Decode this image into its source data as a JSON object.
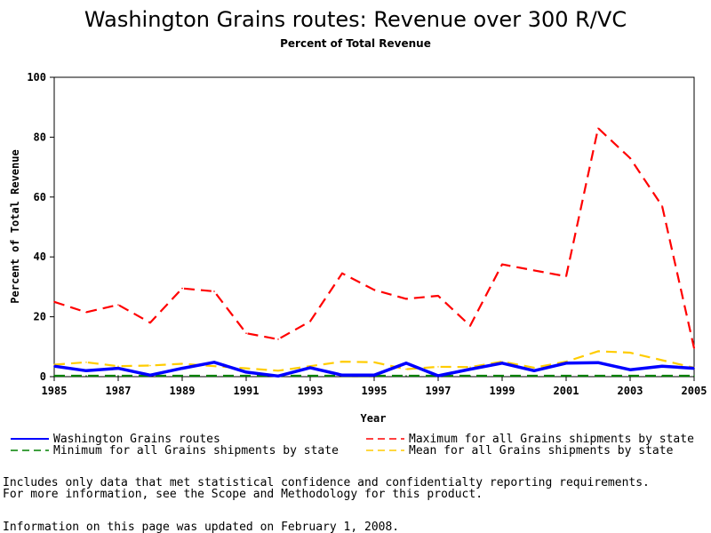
{
  "chart_data": {
    "type": "line",
    "title": "Washington Grains routes: Revenue over 300 R/VC",
    "subtitle": "Percent of Total Revenue",
    "xlabel": "Year",
    "ylabel": "Percent of Total Revenue",
    "xlim": [
      1985,
      2005
    ],
    "ylim": [
      0,
      100
    ],
    "x_ticks": [
      "1985",
      "1987",
      "1989",
      "1991",
      "1993",
      "1995",
      "1997",
      "1999",
      "2001",
      "2003",
      "2005"
    ],
    "y_ticks": [
      "0",
      "20",
      "40",
      "60",
      "80",
      "100"
    ],
    "x": [
      1985,
      1986,
      1987,
      1988,
      1989,
      1990,
      1991,
      1992,
      1993,
      1994,
      1995,
      1996,
      1997,
      1998,
      1999,
      2000,
      2001,
      2002,
      2003,
      2004,
      2005
    ],
    "grid": false,
    "legend_position": "bottom",
    "series": [
      {
        "name": "Washington Grains routes",
        "color": "#0000ff",
        "style": "solid",
        "values": [
          3.5,
          2,
          2.8,
          0.5,
          2.8,
          4.8,
          1.5,
          0.2,
          3,
          0.5,
          0.5,
          4.5,
          0.3,
          2.5,
          4.5,
          2,
          4.5,
          4.7,
          2.3,
          3.5,
          2.8
        ]
      },
      {
        "name": "Maximum for all Grains shipments by state",
        "color": "#ff0000",
        "style": "dashed",
        "values": [
          25,
          21.5,
          24,
          18,
          29.5,
          28.5,
          14.5,
          12.5,
          18.5,
          34.5,
          29,
          26,
          27,
          17,
          37.5,
          35.5,
          33.5,
          83,
          73,
          57,
          9.5
        ]
      },
      {
        "name": "Minimum for all Grains shipments by state",
        "color": "#008000",
        "style": "dashed",
        "values": [
          0.3,
          0.3,
          0.3,
          0.3,
          0.3,
          0.3,
          0.3,
          0.3,
          0.3,
          0.3,
          0.3,
          0.3,
          0.3,
          0.3,
          0.3,
          0.3,
          0.3,
          0.3,
          0.3,
          0.3,
          0.3
        ]
      },
      {
        "name": "Mean for all Grains shipments by state",
        "color": "#ffcc00",
        "style": "dashed",
        "values": [
          4,
          4.8,
          3.5,
          3.7,
          4.3,
          3.5,
          2.8,
          2,
          3.5,
          5,
          4.8,
          2.5,
          3.3,
          3.2,
          5,
          3,
          5,
          8.5,
          8,
          5.5,
          3
        ]
      }
    ]
  },
  "notes": {
    "line1": "Includes only data that met statistical confidence and confidentialty reporting requirements.",
    "line2": "For more information, see the Scope and Methodology for this product.",
    "line3": "Information on this page was updated on February 1, 2008."
  }
}
